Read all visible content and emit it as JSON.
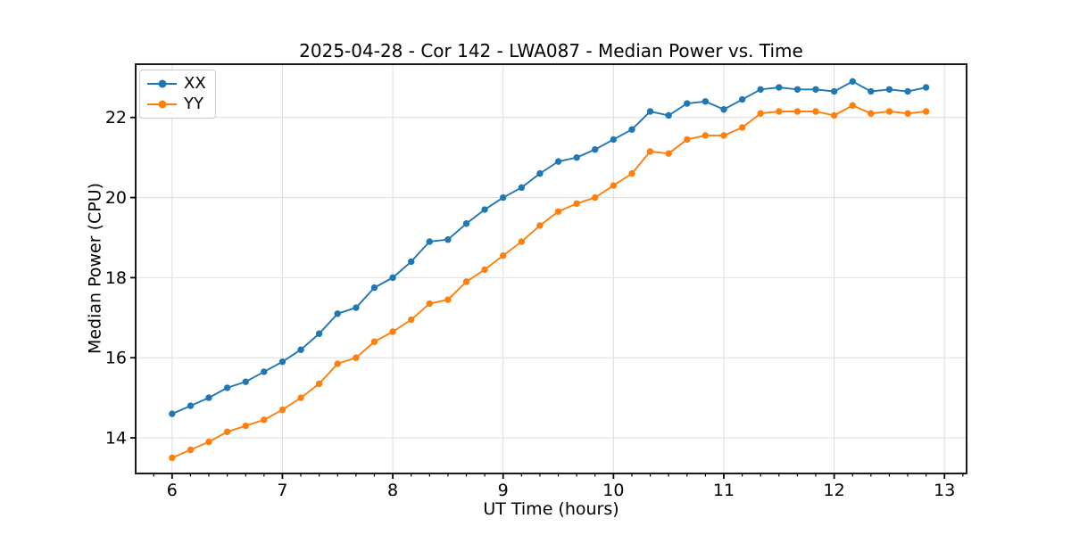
{
  "chart_data": {
    "type": "line",
    "title": "2025-04-28 - Cor 142 - LWA087 - Median Power vs. Time",
    "xlabel": "UT Time (hours)",
    "ylabel": "Median Power (CPU)",
    "xlim": [
      5.67,
      13.2
    ],
    "ylim": [
      13.11,
      23.33
    ],
    "xticks": [
      6,
      7,
      8,
      9,
      10,
      11,
      12,
      13
    ],
    "yticks": [
      14,
      16,
      18,
      20,
      22
    ],
    "x_minor_divisions": 6,
    "grid": true,
    "legend_position": "upper-left",
    "background": "#ffffff",
    "grid_color": "#e0e0e0",
    "x": [
      6.0,
      6.167,
      6.333,
      6.5,
      6.667,
      6.833,
      7.0,
      7.167,
      7.333,
      7.5,
      7.667,
      7.833,
      8.0,
      8.167,
      8.333,
      8.5,
      8.667,
      8.833,
      9.0,
      9.167,
      9.333,
      9.5,
      9.667,
      9.833,
      10.0,
      10.167,
      10.333,
      10.5,
      10.667,
      10.833,
      11.0,
      11.167,
      11.333,
      11.5,
      11.667,
      11.833,
      12.0,
      12.167,
      12.333,
      12.5,
      12.667,
      12.833
    ],
    "series": [
      {
        "name": "XX",
        "color": "#1f77b4",
        "values": [
          14.6,
          14.8,
          15.0,
          15.25,
          15.4,
          15.65,
          15.9,
          16.2,
          16.6,
          17.1,
          17.25,
          17.75,
          18.0,
          18.4,
          18.9,
          18.95,
          19.35,
          19.7,
          20.0,
          20.25,
          20.6,
          20.9,
          21.0,
          21.2,
          21.45,
          21.7,
          22.15,
          22.05,
          22.35,
          22.4,
          22.2,
          22.45,
          22.7,
          22.75,
          22.7,
          22.7,
          22.65,
          22.9,
          22.65,
          22.7,
          22.65,
          22.75
        ]
      },
      {
        "name": "YY",
        "color": "#ff7f0e",
        "values": [
          13.5,
          13.7,
          13.9,
          14.15,
          14.3,
          14.45,
          14.7,
          15.0,
          15.35,
          15.85,
          16.0,
          16.4,
          16.65,
          16.95,
          17.35,
          17.45,
          17.9,
          18.2,
          18.55,
          18.9,
          19.3,
          19.65,
          19.85,
          20.0,
          20.3,
          20.6,
          21.15,
          21.1,
          21.45,
          21.55,
          21.55,
          21.75,
          22.1,
          22.15,
          22.15,
          22.15,
          22.05,
          22.3,
          22.1,
          22.15,
          22.1,
          22.15
        ]
      }
    ]
  }
}
